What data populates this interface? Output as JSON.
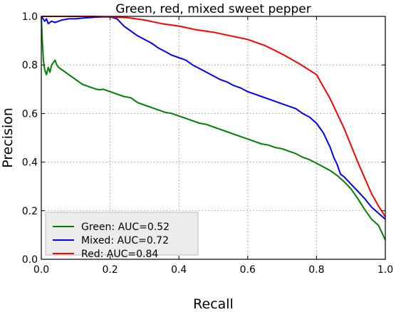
{
  "chart_data": {
    "type": "line",
    "title": "Green, red, mixed sweet pepper",
    "xlabel": "Recall",
    "ylabel": "Precision",
    "xlim": [
      0.0,
      1.0
    ],
    "ylim": [
      0.0,
      1.0
    ],
    "xticks": [
      "0.0",
      "0.2",
      "0.4",
      "0.6",
      "0.8",
      "1.0"
    ],
    "yticks": [
      "0.0",
      "0.2",
      "0.4",
      "0.6",
      "0.8",
      "1.0"
    ],
    "grid": true,
    "legend_position": "lower-left",
    "series": [
      {
        "name": "Green: AUC=0.52",
        "color": "#008000",
        "x": [
          0.0,
          0.003,
          0.006,
          0.01,
          0.015,
          0.02,
          0.025,
          0.03,
          0.035,
          0.04,
          0.045,
          0.05,
          0.06,
          0.07,
          0.08,
          0.09,
          0.1,
          0.11,
          0.12,
          0.13,
          0.14,
          0.15,
          0.16,
          0.17,
          0.18,
          0.2,
          0.22,
          0.24,
          0.26,
          0.28,
          0.3,
          0.32,
          0.34,
          0.36,
          0.38,
          0.4,
          0.42,
          0.44,
          0.46,
          0.48,
          0.5,
          0.52,
          0.54,
          0.56,
          0.58,
          0.6,
          0.62,
          0.64,
          0.66,
          0.68,
          0.7,
          0.72,
          0.74,
          0.76,
          0.78,
          0.8,
          0.82,
          0.84,
          0.86,
          0.88,
          0.9,
          0.92,
          0.94,
          0.96,
          0.98,
          1.0
        ],
        "y": [
          1.0,
          0.9,
          0.82,
          0.78,
          0.76,
          0.79,
          0.77,
          0.8,
          0.81,
          0.82,
          0.8,
          0.79,
          0.78,
          0.77,
          0.76,
          0.75,
          0.74,
          0.73,
          0.72,
          0.715,
          0.71,
          0.705,
          0.7,
          0.698,
          0.7,
          0.69,
          0.68,
          0.67,
          0.665,
          0.645,
          0.635,
          0.625,
          0.615,
          0.605,
          0.6,
          0.59,
          0.58,
          0.57,
          0.56,
          0.555,
          0.545,
          0.535,
          0.525,
          0.515,
          0.505,
          0.495,
          0.485,
          0.475,
          0.47,
          0.46,
          0.455,
          0.445,
          0.435,
          0.42,
          0.41,
          0.395,
          0.38,
          0.365,
          0.345,
          0.32,
          0.29,
          0.25,
          0.205,
          0.165,
          0.14,
          0.08
        ]
      },
      {
        "name": "Mixed: AUC=0.72",
        "color": "#0000ff",
        "x": [
          0.0,
          0.005,
          0.01,
          0.015,
          0.02,
          0.03,
          0.04,
          0.05,
          0.06,
          0.08,
          0.1,
          0.12,
          0.14,
          0.16,
          0.18,
          0.2,
          0.22,
          0.24,
          0.26,
          0.28,
          0.3,
          0.32,
          0.34,
          0.36,
          0.38,
          0.4,
          0.42,
          0.44,
          0.46,
          0.48,
          0.5,
          0.52,
          0.54,
          0.56,
          0.58,
          0.6,
          0.62,
          0.64,
          0.66,
          0.68,
          0.7,
          0.72,
          0.74,
          0.76,
          0.78,
          0.8,
          0.82,
          0.84,
          0.85,
          0.86,
          0.87,
          0.88,
          0.9,
          0.92,
          0.94,
          0.96,
          0.98,
          1.0
        ],
        "y": [
          1.0,
          0.99,
          0.98,
          0.99,
          0.97,
          0.98,
          0.975,
          0.98,
          0.985,
          0.99,
          0.99,
          0.993,
          0.995,
          0.997,
          0.998,
          0.998,
          0.99,
          0.96,
          0.94,
          0.92,
          0.905,
          0.89,
          0.87,
          0.855,
          0.84,
          0.83,
          0.82,
          0.8,
          0.785,
          0.77,
          0.755,
          0.74,
          0.73,
          0.715,
          0.705,
          0.69,
          0.68,
          0.67,
          0.66,
          0.65,
          0.64,
          0.63,
          0.62,
          0.6,
          0.585,
          0.56,
          0.52,
          0.46,
          0.42,
          0.39,
          0.35,
          0.34,
          0.31,
          0.28,
          0.25,
          0.215,
          0.19,
          0.165
        ]
      },
      {
        "name": "Red: AUC=0.84",
        "color": "#ff0000",
        "x": [
          0.0,
          0.05,
          0.1,
          0.15,
          0.2,
          0.25,
          0.3,
          0.35,
          0.4,
          0.45,
          0.5,
          0.55,
          0.6,
          0.65,
          0.7,
          0.75,
          0.8,
          0.82,
          0.84,
          0.86,
          0.88,
          0.9,
          0.92,
          0.94,
          0.96,
          0.98,
          1.0
        ],
        "y": [
          1.0,
          1.0,
          1.0,
          1.0,
          0.998,
          0.995,
          0.985,
          0.97,
          0.96,
          0.945,
          0.935,
          0.92,
          0.905,
          0.88,
          0.845,
          0.805,
          0.76,
          0.71,
          0.66,
          0.6,
          0.54,
          0.47,
          0.4,
          0.335,
          0.27,
          0.22,
          0.175
        ]
      }
    ]
  }
}
